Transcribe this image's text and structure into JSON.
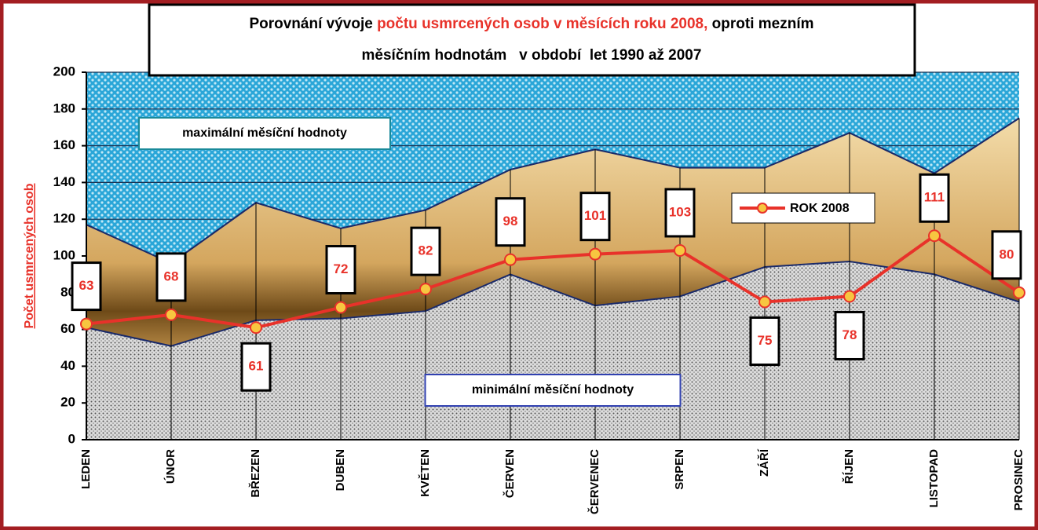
{
  "chart_data": {
    "type": "line",
    "title_parts": [
      "Porovnání vývoje ",
      "počtu usmrcených osob v měsících roku 2008,",
      " oproti mezním",
      "měsíčním hodnotám   v období  let 1990 až 2007"
    ],
    "ylabel": "Počet usmrcených osob",
    "categories": [
      "LEDEN",
      "ÚNOR",
      "BŘEZEN",
      "DUBEN",
      "KVĚTEN",
      "ČERVEN",
      "ČERVENEC",
      "SRPEN",
      "ZÁŘÍ",
      "ŘÍJEN",
      "LISTOPAD",
      "PROSINEC"
    ],
    "series": [
      {
        "name": "maximální měsíční hodnoty",
        "color": "#c8a060",
        "values": [
          117,
          96,
          129,
          115,
          125,
          147,
          158,
          148,
          148,
          167,
          145,
          175
        ]
      },
      {
        "name": "minimální měsíční hodnoty",
        "color": "#b8b8b8",
        "values": [
          61,
          51,
          65,
          66,
          70,
          90,
          73,
          78,
          94,
          97,
          90,
          75
        ]
      },
      {
        "name": "ROK 2008",
        "color": "#e8322a",
        "values": [
          63,
          68,
          61,
          72,
          82,
          98,
          101,
          103,
          75,
          78,
          111,
          80
        ]
      }
    ],
    "ylim": [
      0,
      200
    ],
    "yticks": [
      0,
      20,
      40,
      60,
      80,
      100,
      120,
      140,
      160,
      180,
      200
    ],
    "grid": true
  }
}
